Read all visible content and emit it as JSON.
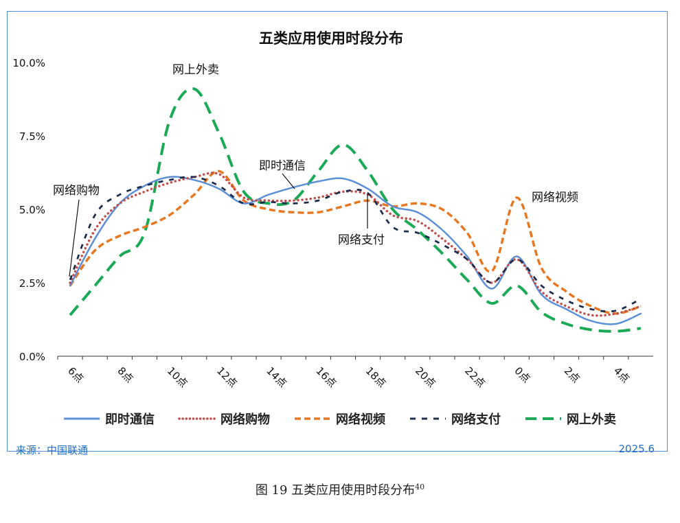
{
  "chart_data": {
    "type": "line",
    "title": "五类应用使用时段分布",
    "xlabel": "",
    "ylabel": "",
    "ylim": [
      0,
      10
    ],
    "yticks": [
      "0.0%",
      "2.5%",
      "5.0%",
      "7.5%",
      "10.0%"
    ],
    "ytick_values": [
      0,
      2.5,
      5,
      7.5,
      10
    ],
    "categories": [
      "6点",
      "7点",
      "8点",
      "9点",
      "10点",
      "11点",
      "12点",
      "13点",
      "14点",
      "15点",
      "16点",
      "17点",
      "18点",
      "19点",
      "20点",
      "21点",
      "22点",
      "23点",
      "0点",
      "1点",
      "2点",
      "3点",
      "4点",
      "5点"
    ],
    "tick_labels": [
      "6点",
      "8点",
      "10点",
      "12点",
      "14点",
      "16点",
      "18点",
      "20点",
      "22点",
      "0点",
      "2点",
      "4点"
    ],
    "series": [
      {
        "name": "即时通信",
        "color": "#5b8fd6",
        "style": "solid",
        "values": [
          2.4,
          4.0,
          5.2,
          5.8,
          6.1,
          6.0,
          5.7,
          5.2,
          5.5,
          5.75,
          5.95,
          6.05,
          5.7,
          5.1,
          4.9,
          4.3,
          3.4,
          2.3,
          3.4,
          2.1,
          1.6,
          1.2,
          1.1,
          1.45
        ]
      },
      {
        "name": "网络购物",
        "color": "#c0504d",
        "style": "dotted",
        "values": [
          2.5,
          4.3,
          5.2,
          5.6,
          5.9,
          6.1,
          6.2,
          5.4,
          5.3,
          5.3,
          5.4,
          5.6,
          5.5,
          4.8,
          4.6,
          4.0,
          3.3,
          2.5,
          3.3,
          2.2,
          1.7,
          1.4,
          1.45,
          1.7
        ]
      },
      {
        "name": "网络视频",
        "color": "#e87722",
        "style": "dashed",
        "values": [
          2.4,
          3.6,
          4.1,
          4.4,
          4.8,
          5.5,
          6.3,
          5.3,
          5.0,
          4.9,
          4.9,
          5.1,
          5.3,
          5.1,
          5.2,
          5.0,
          4.2,
          2.9,
          5.4,
          3.0,
          2.2,
          1.7,
          1.45,
          1.7
        ]
      },
      {
        "name": "网络支付",
        "color": "#1f2d4d",
        "style": "shortdash",
        "values": [
          2.6,
          4.8,
          5.5,
          5.8,
          6.0,
          6.1,
          5.8,
          5.2,
          5.25,
          5.2,
          5.3,
          5.6,
          5.55,
          4.4,
          4.2,
          3.8,
          3.3,
          2.5,
          3.3,
          2.4,
          1.9,
          1.6,
          1.55,
          1.95
        ]
      },
      {
        "name": "网上外卖",
        "color": "#1aaa55",
        "style": "longdash",
        "values": [
          1.4,
          2.4,
          3.4,
          4.2,
          8.0,
          9.1,
          7.6,
          5.6,
          5.2,
          5.3,
          6.3,
          7.2,
          6.3,
          5.0,
          4.3,
          3.5,
          2.6,
          1.8,
          2.4,
          1.5,
          1.1,
          0.9,
          0.85,
          0.95
        ]
      }
    ],
    "annotations": [
      {
        "text": "网上外卖",
        "series": "网上外卖"
      },
      {
        "text": "即时通信",
        "series": "即时通信"
      },
      {
        "text": "网络购物",
        "series": "网络购物"
      },
      {
        "text": "网络支付",
        "series": "网络支付"
      },
      {
        "text": "网络视频",
        "series": "网络视频"
      }
    ]
  },
  "footer": {
    "source": "来源：中国联通",
    "date": "2025.6"
  },
  "caption": {
    "text": "图  19    五类应用使用时段分布",
    "note": "40"
  }
}
